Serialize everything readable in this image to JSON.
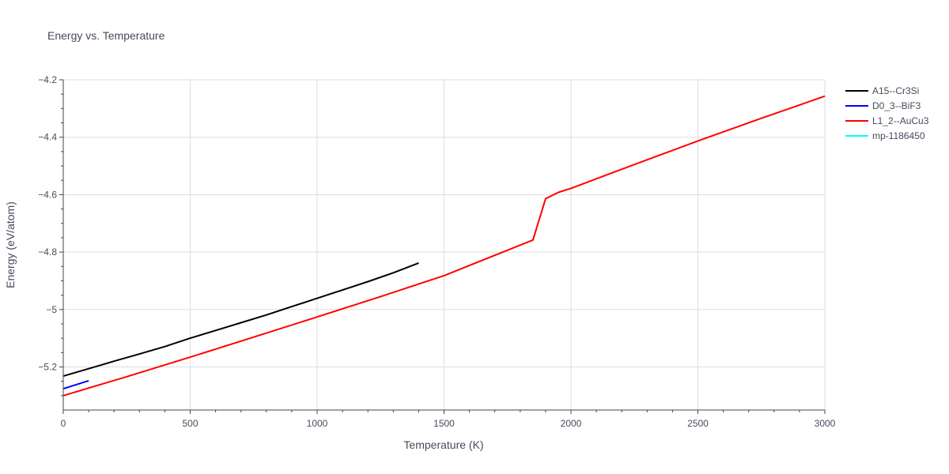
{
  "chart_data": {
    "type": "line",
    "title": "Energy vs. Temperature",
    "xlabel": "Temperature (K)",
    "ylabel": "Energy (eV/atom)",
    "xlim": [
      0,
      3000
    ],
    "ylim": [
      -5.35,
      -4.2
    ],
    "x_ticks": [
      0,
      500,
      1000,
      1500,
      2000,
      2500,
      3000
    ],
    "x_tick_labels": [
      "0",
      "500",
      "1000",
      "1500",
      "2000",
      "2500",
      "3000"
    ],
    "y_ticks": [
      -5.2,
      -5,
      -4.8,
      -4.6,
      -4.4,
      -4.2
    ],
    "y_tick_labels": [
      "−5.2",
      "−5",
      "−4.8",
      "−4.6",
      "−4.4",
      "−4.2"
    ],
    "grid": true,
    "legend_position": "top-right",
    "series": [
      {
        "name": "A15--Cr3Si",
        "color": "#000000",
        "x": [
          0,
          100,
          200,
          300,
          400,
          500,
          600,
          700,
          800,
          900,
          1000,
          1100,
          1200,
          1300,
          1400
        ],
        "y": [
          -5.232,
          -5.206,
          -5.18,
          -5.155,
          -5.129,
          -5.1,
          -5.073,
          -5.046,
          -5.019,
          -4.99,
          -4.961,
          -4.932,
          -4.903,
          -4.872,
          -4.838
        ]
      },
      {
        "name": "D0_3--BiF3",
        "color": "#0000ff",
        "x": [
          0,
          100
        ],
        "y": [
          -5.276,
          -5.248
        ]
      },
      {
        "name": "L1_2--AuCu3",
        "color": "#ff0000",
        "x": [
          0,
          250,
          500,
          750,
          1000,
          1250,
          1500,
          1850,
          1900,
          1950,
          2000,
          2250,
          2500,
          2750,
          3000
        ],
        "y": [
          -5.3,
          -5.234,
          -5.166,
          -5.096,
          -5.026,
          -4.955,
          -4.882,
          -4.758,
          -4.614,
          -4.592,
          -4.578,
          -4.495,
          -4.413,
          -4.334,
          -4.257
        ]
      },
      {
        "name": "mp-1186450",
        "color": "#00ffff",
        "x": [],
        "y": []
      }
    ]
  }
}
